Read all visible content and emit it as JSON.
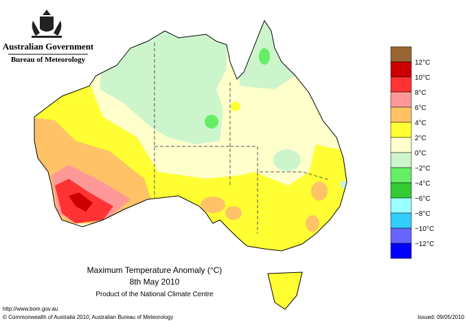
{
  "header": {
    "government": "Australian Government",
    "bureau": "Bureau of Meteorology"
  },
  "map": {
    "title": "Maximum Temperature Anomaly (°C)",
    "date": "8th May 2010",
    "credit": "Product of the National Climate Centre"
  },
  "legend": {
    "swatches": [
      "#996633",
      "#cc0000",
      "#ff3333",
      "#ff9999",
      "#ffc266",
      "#ffff33",
      "#ffffcc",
      "#ccf5cc",
      "#66ee66",
      "#33cc33",
      "#99ffff",
      "#33ccff",
      "#6666ff",
      "#0000ff"
    ],
    "labels": [
      "12°C",
      "10°C",
      "8°C",
      "6°C",
      "4°C",
      "2°C",
      "0°C",
      "−2°C",
      "−4°C",
      "−6°C",
      "−8°C",
      "−10°C",
      "−12°C"
    ]
  },
  "footer": {
    "url": "http://www.bom.gov.au",
    "copyright": "© Commonwealth of Australia 2010, Australian Bureau of Meteorology",
    "issued": "Issued: 09/05/2010"
  }
}
